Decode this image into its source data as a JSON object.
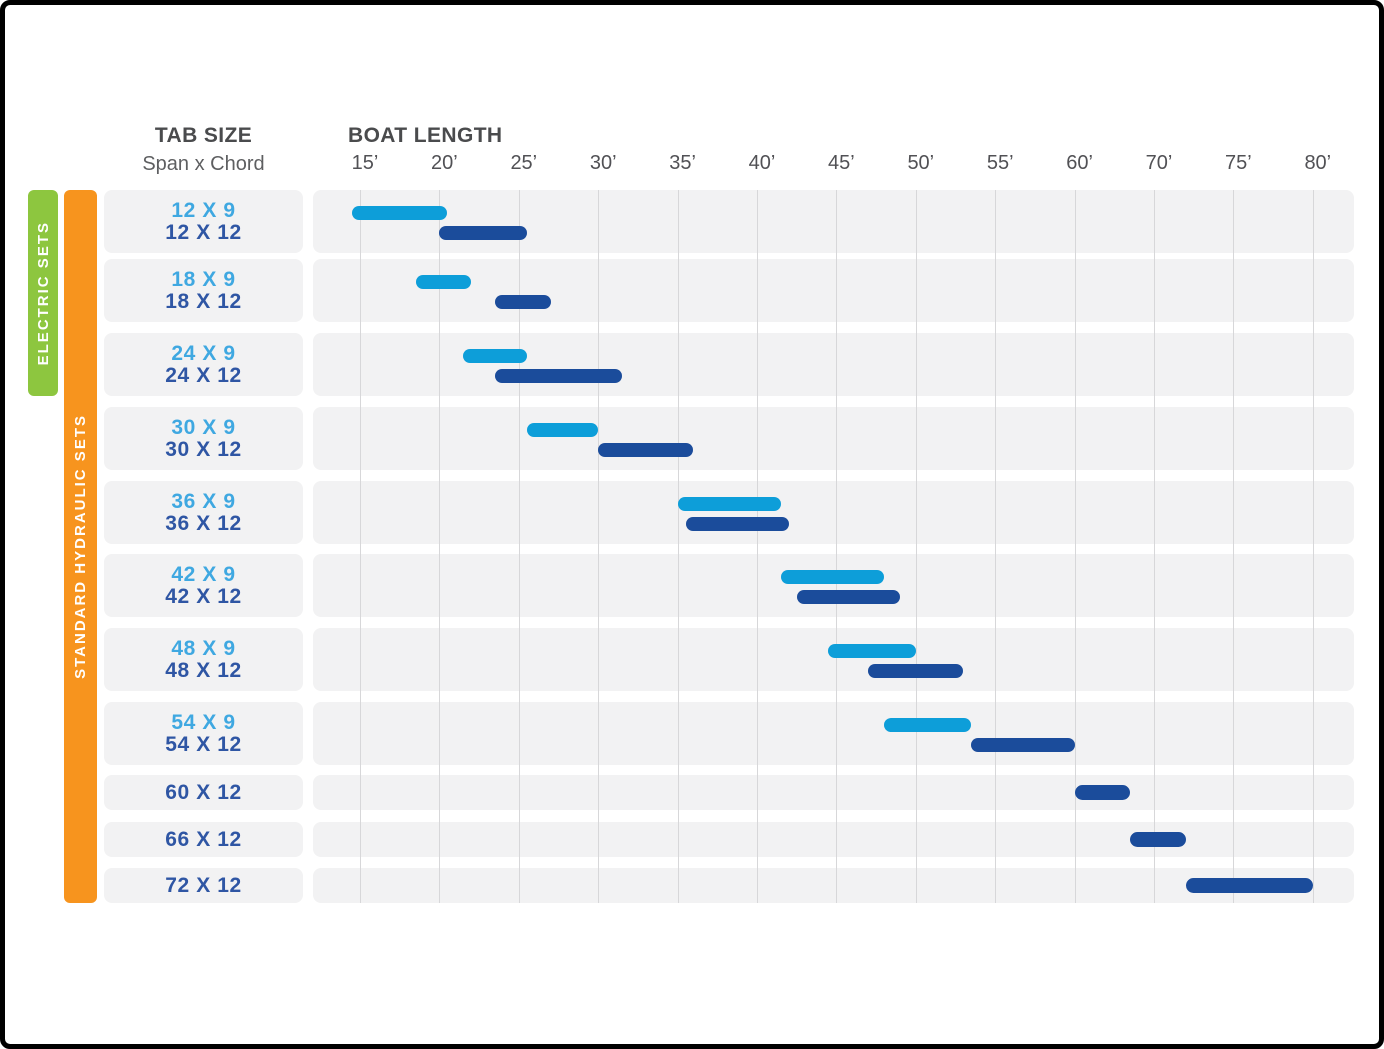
{
  "header": {
    "tab_size_title": "TAB SIZE",
    "tab_size_subtitle": "Span x Chord",
    "boat_length_title": "BOAT LENGTH"
  },
  "ribbons": {
    "electric": {
      "label": "ELECTRIC SETS",
      "color": "#8DC63F",
      "text_color": "#FFFFFF"
    },
    "hydraulic": {
      "label": "STANDARD HYDRAULIC SETS",
      "color": "#F7941E",
      "text_color": "#FFFFFF"
    }
  },
  "chart_data": {
    "type": "bar",
    "title": "BOAT LENGTH",
    "xlabel": "BOAT LENGTH",
    "ylabel": "TAB SIZE (Span x Chord)",
    "x_tick_labels": [
      "15’",
      "20’",
      "25’",
      "30’",
      "35’",
      "40’",
      "45’",
      "50’",
      "55’",
      "60’",
      "70’",
      "75’",
      "80’"
    ],
    "x_tick_feet": [
      15,
      20,
      25,
      30,
      35,
      40,
      45,
      50,
      55,
      60,
      70,
      75,
      80
    ],
    "axis_note": "ticks evenly spaced; no 65’ label — 60’ to 70’ is a single interval",
    "grid": true,
    "series": [
      {
        "id": "x9",
        "color": "#0D9ED9",
        "label_color": "#3FA8E1"
      },
      {
        "id": "x12",
        "color": "#1B4C9B",
        "label_color": "#2F56A4"
      }
    ],
    "rows": [
      {
        "type": "double",
        "labels": [
          "12 X 9",
          "12 X 12"
        ],
        "bars": [
          {
            "series": 0,
            "from_ft": 14.5,
            "to_ft": 20.5
          },
          {
            "series": 1,
            "from_ft": 20,
            "to_ft": 25.5
          }
        ]
      },
      {
        "type": "double",
        "labels": [
          "18 X 9",
          "18 X 12"
        ],
        "bars": [
          {
            "series": 0,
            "from_ft": 18.5,
            "to_ft": 22
          },
          {
            "series": 1,
            "from_ft": 23.5,
            "to_ft": 27
          }
        ]
      },
      {
        "type": "double",
        "labels": [
          "24 X 9",
          "24 X 12"
        ],
        "bars": [
          {
            "series": 0,
            "from_ft": 21.5,
            "to_ft": 25.5
          },
          {
            "series": 1,
            "from_ft": 23.5,
            "to_ft": 31.5
          }
        ]
      },
      {
        "type": "double",
        "labels": [
          "30 X 9",
          "30 X 12"
        ],
        "bars": [
          {
            "series": 0,
            "from_ft": 25.5,
            "to_ft": 30
          },
          {
            "series": 1,
            "from_ft": 30,
            "to_ft": 36
          }
        ]
      },
      {
        "type": "double",
        "labels": [
          "36 X 9",
          "36 X 12"
        ],
        "bars": [
          {
            "series": 0,
            "from_ft": 35,
            "to_ft": 41.5
          },
          {
            "series": 1,
            "from_ft": 35.5,
            "to_ft": 42
          }
        ]
      },
      {
        "type": "double",
        "labels": [
          "42 X 9",
          "42 X 12"
        ],
        "bars": [
          {
            "series": 0,
            "from_ft": 41.5,
            "to_ft": 48
          },
          {
            "series": 1,
            "from_ft": 42.5,
            "to_ft": 49
          }
        ]
      },
      {
        "type": "double",
        "labels": [
          "48 X 9",
          "48 X 12"
        ],
        "bars": [
          {
            "series": 0,
            "from_ft": 44.5,
            "to_ft": 50
          },
          {
            "series": 1,
            "from_ft": 47,
            "to_ft": 53
          }
        ]
      },
      {
        "type": "double",
        "labels": [
          "54 X 9",
          "54 X 12"
        ],
        "bars": [
          {
            "series": 0,
            "from_ft": 48,
            "to_ft": 53.5
          },
          {
            "series": 1,
            "from_ft": 53.5,
            "to_ft": 60
          }
        ]
      },
      {
        "type": "single",
        "labels": [
          "60 X 12"
        ],
        "bars": [
          {
            "series": 1,
            "from_ft": 60,
            "to_ft": 67
          }
        ]
      },
      {
        "type": "single",
        "labels": [
          "66 X 12"
        ],
        "bars": [
          {
            "series": 1,
            "from_ft": 67,
            "to_ft": 72
          }
        ]
      },
      {
        "type": "single",
        "labels": [
          "72 X 12"
        ],
        "bars": [
          {
            "series": 1,
            "from_ft": 72,
            "to_ft": 80
          }
        ]
      }
    ]
  }
}
